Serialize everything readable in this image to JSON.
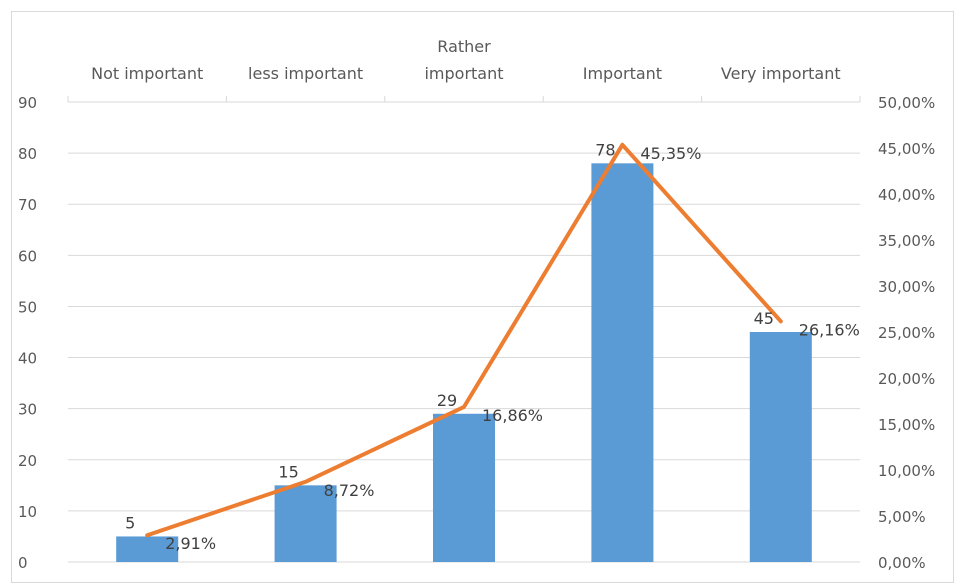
{
  "chart_data": {
    "type": "bar",
    "categories": [
      "Not important",
      "less important",
      "Rather important",
      "Important",
      "Very important"
    ],
    "series": [
      {
        "type": "bar",
        "axis": "left",
        "values": [
          5,
          15,
          29,
          78,
          45
        ],
        "labels": [
          "5",
          "15",
          "29",
          "78",
          "45"
        ],
        "color": "#5b9bd5"
      },
      {
        "type": "line",
        "axis": "right",
        "values": [
          2.91,
          8.72,
          16.86,
          45.35,
          26.16
        ],
        "labels": [
          "2,91%",
          "8,72%",
          "16,86%",
          "45,35%",
          "26,16%"
        ],
        "color": "#ed7d31"
      }
    ],
    "y_left": {
      "min": 0,
      "max": 90,
      "step": 10,
      "ticks": [
        "0",
        "10",
        "20",
        "30",
        "40",
        "50",
        "60",
        "70",
        "80",
        "90"
      ]
    },
    "y_right": {
      "min": 0,
      "max": 50,
      "step": 5,
      "ticks": [
        "0,00%",
        "5,00%",
        "10,00%",
        "15,00%",
        "20,00%",
        "25,00%",
        "30,00%",
        "35,00%",
        "40,00%",
        "45,00%",
        "50,00%"
      ]
    },
    "category_axis_position": "top",
    "grid": true,
    "gridline_color": "#d9d9d9",
    "title": "",
    "xlabel": "",
    "ylabel": ""
  }
}
